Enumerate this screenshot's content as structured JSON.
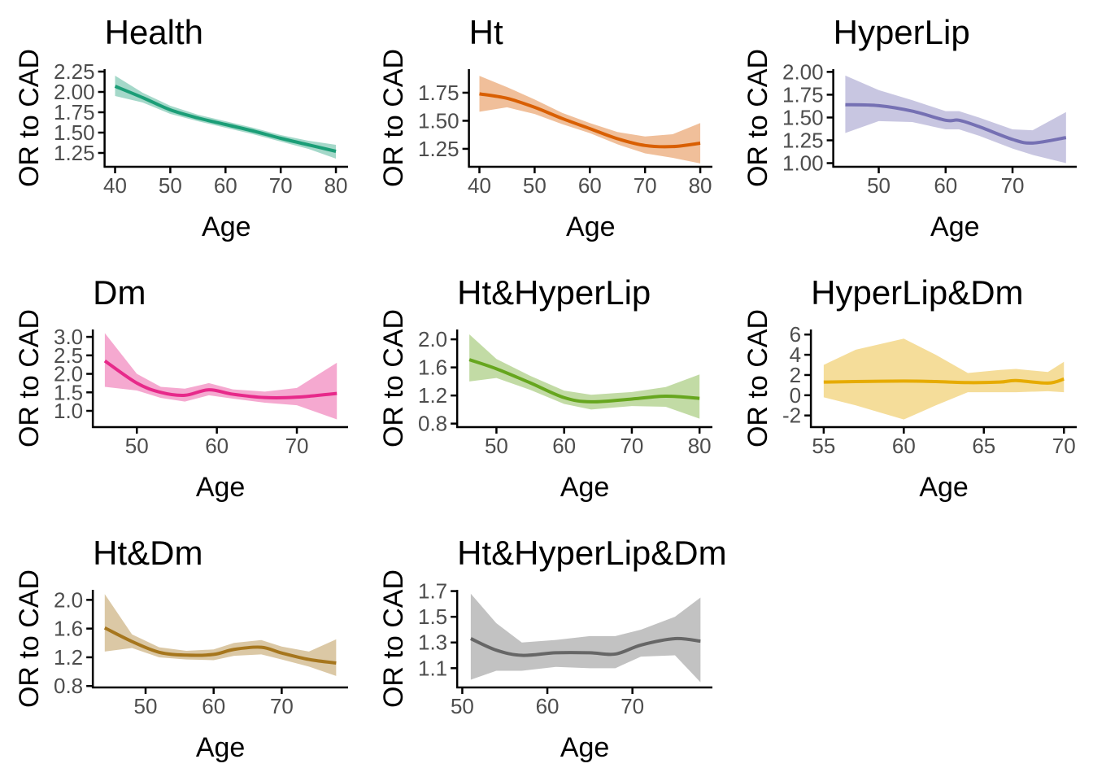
{
  "chart_data": [
    {
      "type": "line",
      "title": "Health",
      "xlabel": "Age",
      "ylabel": "OR to CAD",
      "color": "#1b9e77",
      "x": [
        40,
        45,
        50,
        55,
        60,
        65,
        70,
        75,
        80
      ],
      "values": [
        2.07,
        1.93,
        1.78,
        1.68,
        1.6,
        1.52,
        1.43,
        1.35,
        1.27
      ],
      "lower": [
        1.95,
        1.87,
        1.73,
        1.64,
        1.56,
        1.48,
        1.39,
        1.3,
        1.18
      ],
      "upper": [
        2.2,
        1.99,
        1.83,
        1.72,
        1.64,
        1.56,
        1.47,
        1.4,
        1.35
      ],
      "xlim": [
        38.1,
        82.2
      ],
      "xticks": [
        40,
        50,
        60,
        70,
        80
      ],
      "ylim": [
        1.08,
        2.28
      ],
      "yticks": [
        2.25,
        {
          "value": 2,
          "label": "2.00"
        },
        1.75,
        {
          "value": 1.5,
          "label": "1.50"
        },
        1.25
      ]
    },
    {
      "type": "line",
      "title": "Ht",
      "xlabel": "Age",
      "ylabel": "OR to CAD",
      "color": "#d95f02",
      "x": [
        40,
        45,
        50,
        55,
        60,
        65,
        70,
        75,
        80
      ],
      "values": [
        1.74,
        1.7,
        1.62,
        1.52,
        1.43,
        1.34,
        1.28,
        1.27,
        1.3
      ],
      "lower": [
        1.58,
        1.62,
        1.56,
        1.47,
        1.39,
        1.29,
        1.21,
        1.17,
        1.12
      ],
      "upper": [
        1.9,
        1.8,
        1.69,
        1.57,
        1.48,
        1.4,
        1.36,
        1.38,
        1.48
      ],
      "xlim": [
        38.1,
        82.2
      ],
      "xticks": [
        40,
        50,
        60,
        70,
        80
      ],
      "ylim": [
        1.09,
        1.96
      ],
      "yticks": [
        1.75,
        {
          "value": 1.5,
          "label": "1.50"
        },
        1.25
      ]
    },
    {
      "type": "line",
      "title": "HyperLip",
      "xlabel": "Age",
      "ylabel": "OR to CAD",
      "color": "#7570b3",
      "x": [
        45,
        50,
        55,
        60,
        62,
        65,
        70,
        73,
        78
      ],
      "values": [
        1.64,
        1.63,
        1.57,
        1.47,
        1.47,
        1.4,
        1.26,
        1.22,
        1.28
      ],
      "lower": [
        1.33,
        1.46,
        1.45,
        1.37,
        1.37,
        1.3,
        1.16,
        1.09,
        1.0
      ],
      "upper": [
        1.96,
        1.8,
        1.69,
        1.57,
        1.57,
        1.5,
        1.37,
        1.36,
        1.56
      ],
      "xlim": [
        43.2,
        79.6
      ],
      "xticks": [
        50,
        60,
        70
      ],
      "ylim": [
        0.96,
        2.03
      ],
      "yticks": [
        {
          "value": 2,
          "label": "2.00"
        },
        1.75,
        {
          "value": 1.5,
          "label": "1.50"
        },
        1.25,
        {
          "value": 1,
          "label": "1.00"
        }
      ]
    },
    {
      "type": "line",
      "title": "Dm",
      "xlabel": "Age",
      "ylabel": "OR to CAD",
      "color": "#e7298a",
      "x": [
        46,
        50,
        53,
        56,
        59,
        62,
        66,
        70,
        75
      ],
      "values": [
        2.35,
        1.75,
        1.5,
        1.42,
        1.57,
        1.45,
        1.36,
        1.37,
        1.47
      ],
      "lower": [
        1.65,
        1.55,
        1.35,
        1.25,
        1.42,
        1.33,
        1.22,
        1.15,
        0.77
      ],
      "upper": [
        3.1,
        2.0,
        1.65,
        1.6,
        1.75,
        1.58,
        1.52,
        1.62,
        2.3
      ],
      "xlim": [
        44.5,
        76.4
      ],
      "xticks": [
        50,
        60,
        70
      ],
      "ylim": [
        0.56,
        3.2
      ],
      "yticks": [
        {
          "value": 3,
          "label": "3.0"
        },
        2.5,
        {
          "value": 2,
          "label": "2.0"
        },
        1.5,
        {
          "value": 1,
          "label": "1.0"
        }
      ]
    },
    {
      "type": "line",
      "title": "Ht&HyperLip",
      "xlabel": "Age",
      "ylabel": "OR to CAD",
      "color": "#66a61e",
      "x": [
        46,
        50,
        55,
        60,
        64,
        70,
        75,
        80
      ],
      "values": [
        1.71,
        1.58,
        1.38,
        1.17,
        1.11,
        1.15,
        1.19,
        1.16
      ],
      "lower": [
        1.4,
        1.45,
        1.28,
        1.08,
        1.0,
        1.05,
        1.04,
        0.87
      ],
      "upper": [
        2.07,
        1.72,
        1.48,
        1.27,
        1.21,
        1.25,
        1.32,
        1.5
      ],
      "xlim": [
        44.2,
        81.9
      ],
      "xticks": [
        50,
        60,
        70,
        80
      ],
      "ylim": [
        0.75,
        2.14
      ],
      "yticks": [
        {
          "value": 2,
          "label": "2.0"
        },
        1.6,
        1.2,
        0.8
      ]
    },
    {
      "type": "line",
      "title": "HyperLip&Dm",
      "xlabel": "Age",
      "ylabel": "OR to CAD",
      "color": "#e6ab02",
      "x": [
        55,
        57,
        60,
        62,
        64,
        66,
        67,
        69,
        70
      ],
      "values": [
        1.3,
        1.35,
        1.4,
        1.35,
        1.25,
        1.3,
        1.45,
        1.2,
        1.6
      ],
      "lower": [
        -0.2,
        -1.0,
        -2.4,
        -1.0,
        0.3,
        0.3,
        0.3,
        0.4,
        0.3
      ],
      "upper": [
        3.0,
        4.5,
        5.6,
        4.0,
        2.2,
        2.5,
        2.6,
        2.3,
        3.3
      ],
      "xlim": [
        54.2,
        70.8
      ],
      "xticks": [
        55,
        60,
        65,
        70
      ],
      "ylim": [
        -3.15,
        6.5
      ],
      "yticks": [
        6,
        4,
        2,
        0,
        -2
      ]
    },
    {
      "type": "line",
      "title": "Ht&Dm",
      "xlabel": "Age",
      "ylabel": "OR to CAD",
      "color": "#a6761d",
      "x": [
        44,
        48,
        52,
        56,
        60,
        63,
        67,
        70,
        74,
        78
      ],
      "values": [
        1.61,
        1.42,
        1.27,
        1.23,
        1.24,
        1.31,
        1.34,
        1.26,
        1.17,
        1.12
      ],
      "lower": [
        1.28,
        1.33,
        1.2,
        1.17,
        1.16,
        1.22,
        1.24,
        1.17,
        1.07,
        0.94
      ],
      "upper": [
        2.08,
        1.52,
        1.34,
        1.29,
        1.31,
        1.4,
        1.44,
        1.35,
        1.28,
        1.45
      ],
      "xlim": [
        42.25,
        79.75
      ],
      "xticks": [
        50,
        60,
        70
      ],
      "ylim": [
        0.78,
        2.14
      ],
      "yticks": [
        {
          "value": 2,
          "label": "2.0"
        },
        1.6,
        1.2,
        0.8
      ]
    },
    {
      "type": "line",
      "title": "Ht&HyperLip&Dm",
      "xlabel": "Age",
      "ylabel": "OR to CAD",
      "color": "#666666",
      "x": [
        51,
        54,
        57,
        61,
        65,
        68,
        71,
        75,
        78
      ],
      "values": [
        1.33,
        1.24,
        1.2,
        1.22,
        1.22,
        1.21,
        1.28,
        1.33,
        1.31
      ],
      "lower": [
        1.01,
        1.08,
        1.08,
        1.11,
        1.1,
        1.1,
        1.19,
        1.2,
        0.99
      ],
      "upper": [
        1.68,
        1.45,
        1.3,
        1.32,
        1.35,
        1.35,
        1.4,
        1.5,
        1.65
      ],
      "xlim": [
        49.4,
        79.4
      ],
      "xticks": [
        50,
        60,
        70
      ],
      "ylim": [
        0.95,
        1.71
      ],
      "yticks": [
        1.7,
        1.5,
        1.3,
        1.1
      ]
    }
  ]
}
